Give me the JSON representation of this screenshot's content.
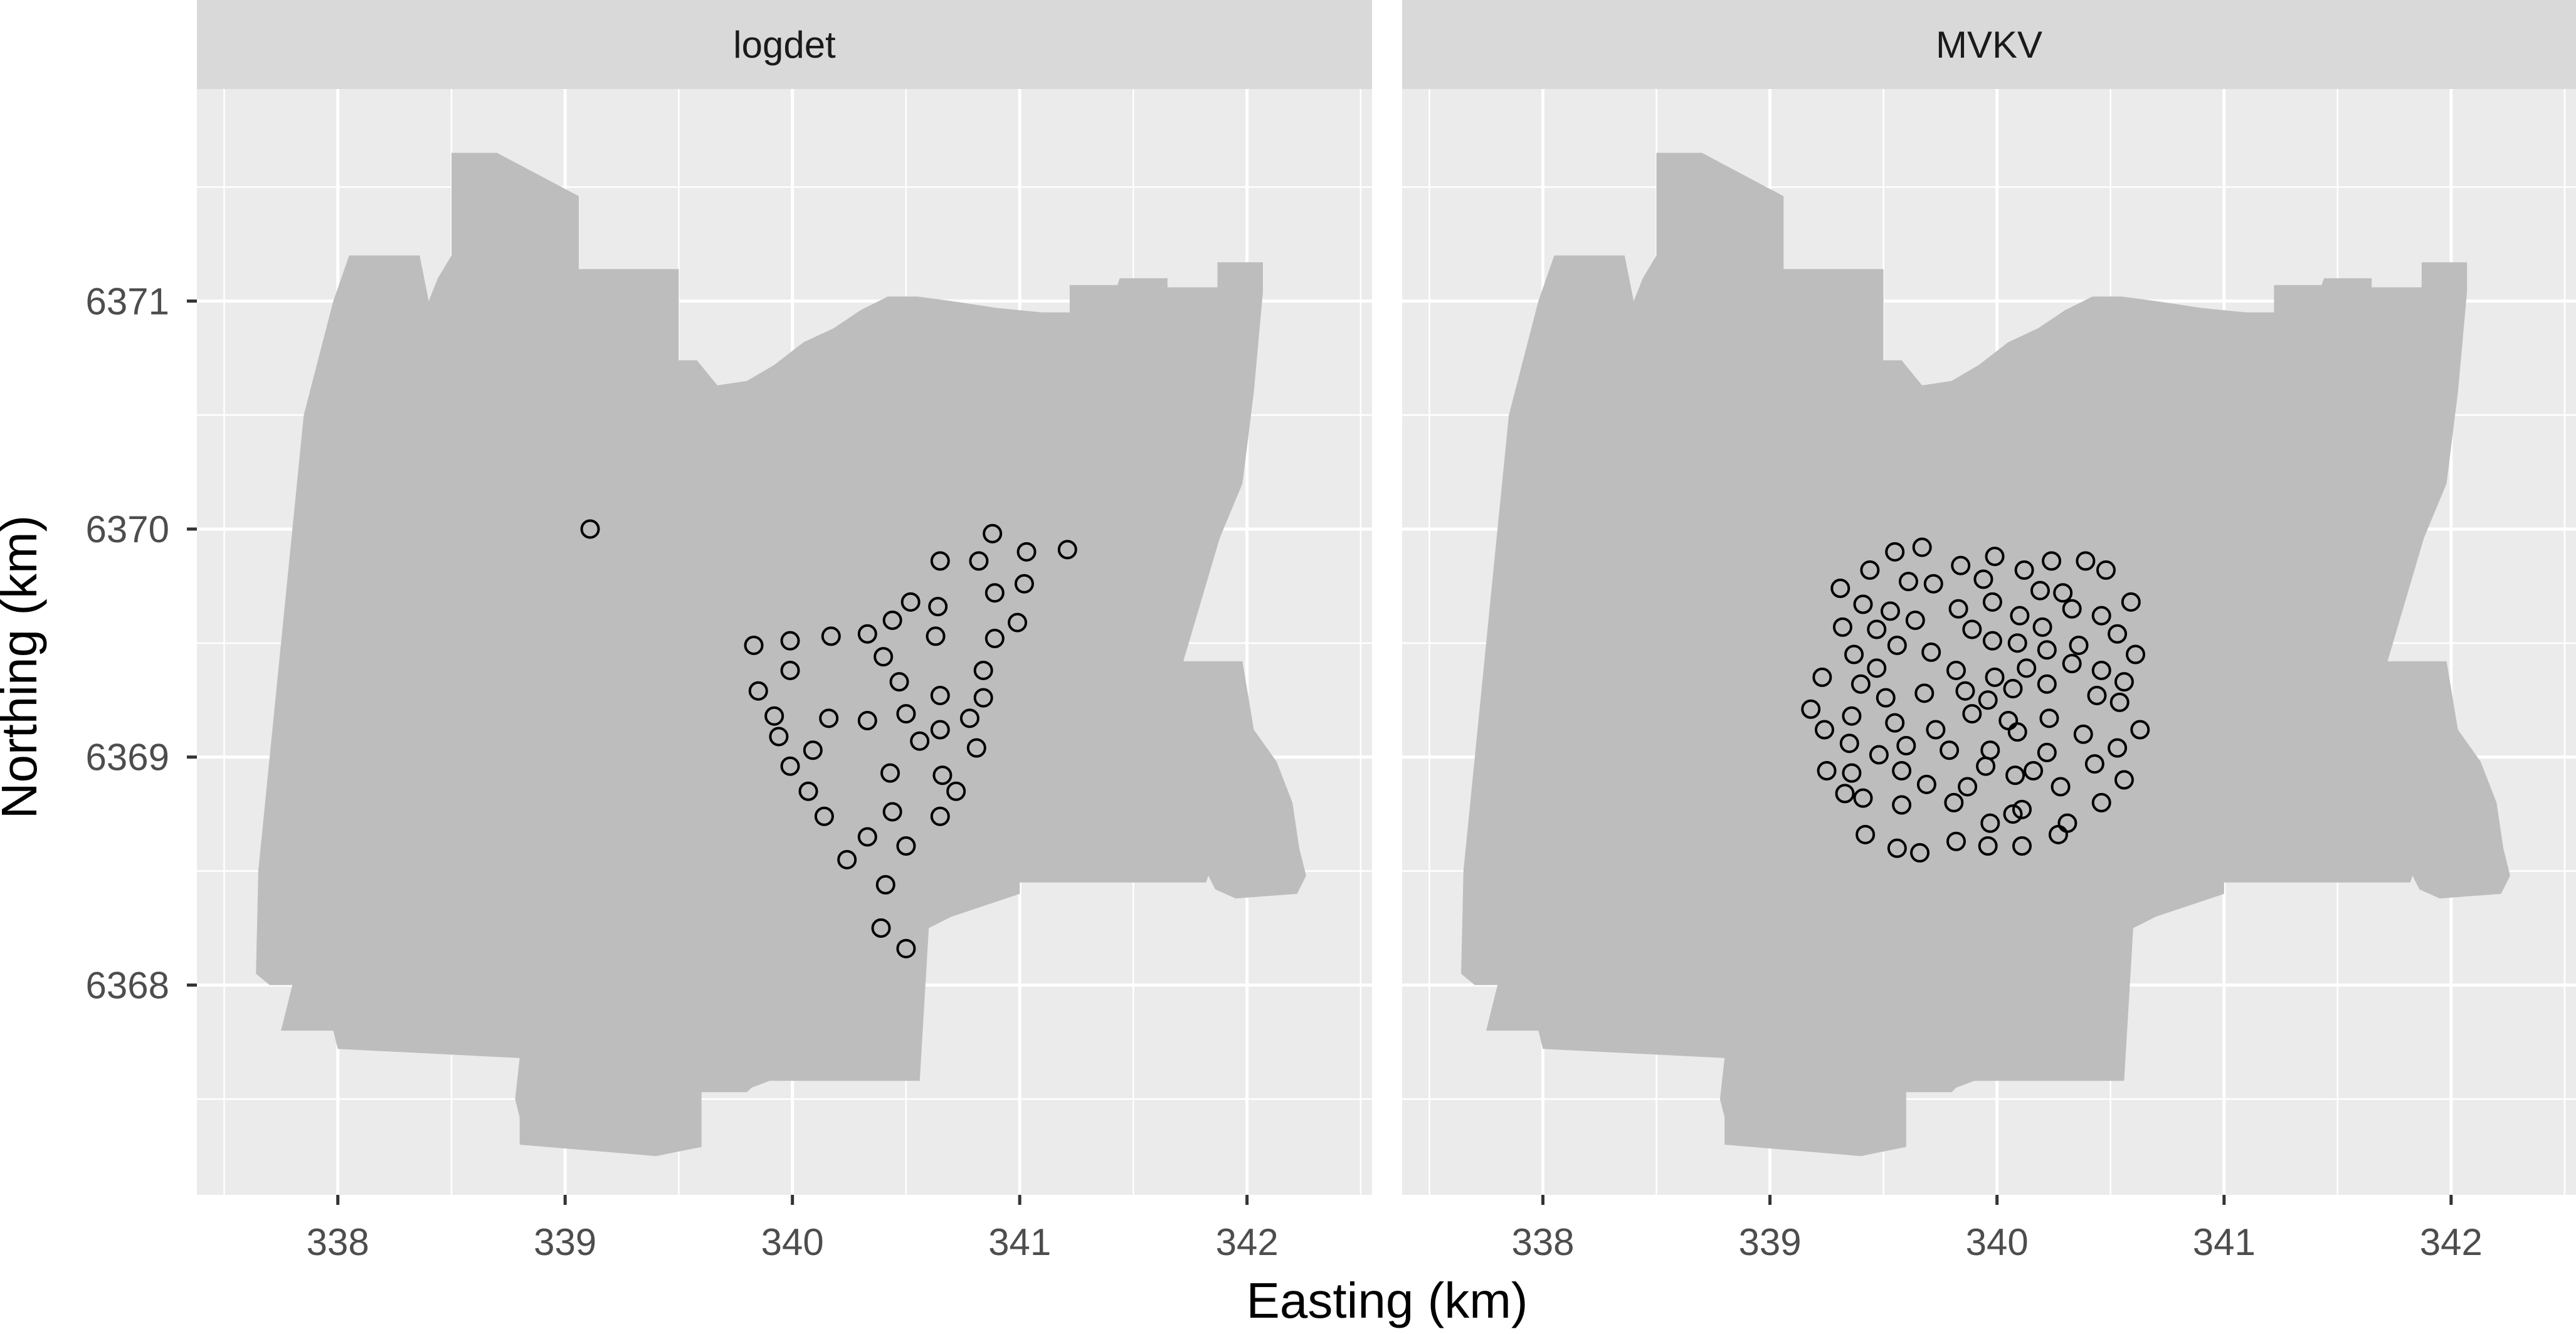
{
  "chart_data": {
    "type": "scatter",
    "xlabel": "Easting (km)",
    "ylabel": "Northing (km)",
    "xlim": [
      337.38,
      342.55
    ],
    "ylim": [
      6367.08,
      6371.93
    ],
    "x_ticks": [
      338,
      339,
      340,
      341,
      342
    ],
    "y_ticks": [
      6368,
      6369,
      6370,
      6371
    ],
    "x_tick_labels": [
      "338",
      "339",
      "340",
      "341",
      "342"
    ],
    "y_tick_labels": [
      "6368",
      "6369",
      "6370",
      "6371"
    ],
    "grid": true,
    "region_fill": "#bdbdbd",
    "panel_background": "#ebebeb",
    "strip_background": "#d9d9d9",
    "point_style": "open-circle",
    "study_area_outline": [
      [
        339.06,
        6371.46
      ],
      [
        339.06,
        6371.14
      ],
      [
        339.5,
        6371.14
      ],
      [
        339.5,
        6370.74
      ],
      [
        339.58,
        6370.74
      ],
      [
        339.67,
        6370.63
      ],
      [
        339.8,
        6370.65
      ],
      [
        339.92,
        6370.72
      ],
      [
        340.05,
        6370.82
      ],
      [
        340.18,
        6370.88
      ],
      [
        340.3,
        6370.96
      ],
      [
        340.42,
        6371.02
      ],
      [
        340.55,
        6371.02
      ],
      [
        340.7,
        6371.0
      ],
      [
        340.9,
        6370.97
      ],
      [
        341.1,
        6370.95
      ],
      [
        341.22,
        6370.95
      ],
      [
        341.22,
        6371.07
      ],
      [
        341.43,
        6371.07
      ],
      [
        341.44,
        6371.1
      ],
      [
        341.65,
        6371.1
      ],
      [
        341.65,
        6371.06
      ],
      [
        341.87,
        6371.06
      ],
      [
        341.87,
        6371.17
      ],
      [
        342.07,
        6371.17
      ],
      [
        342.07,
        6371.04
      ],
      [
        342.03,
        6370.6
      ],
      [
        341.98,
        6370.2
      ],
      [
        341.88,
        6369.96
      ],
      [
        341.72,
        6369.42
      ],
      [
        341.98,
        6369.42
      ],
      [
        342.03,
        6369.12
      ],
      [
        342.13,
        6368.98
      ],
      [
        342.2,
        6368.8
      ],
      [
        342.23,
        6368.6
      ],
      [
        342.26,
        6368.48
      ],
      [
        342.22,
        6368.4
      ],
      [
        341.95,
        6368.38
      ],
      [
        341.86,
        6368.42
      ],
      [
        341.83,
        6368.48
      ],
      [
        341.82,
        6368.45
      ],
      [
        341.0,
        6368.45
      ],
      [
        341.0,
        6368.4
      ],
      [
        340.7,
        6368.3
      ],
      [
        340.6,
        6368.25
      ],
      [
        340.56,
        6367.58
      ],
      [
        339.9,
        6367.58
      ],
      [
        339.82,
        6367.55
      ],
      [
        339.8,
        6367.53
      ],
      [
        339.6,
        6367.53
      ],
      [
        339.6,
        6367.29
      ],
      [
        339.5,
        6367.27
      ],
      [
        339.4,
        6367.25
      ],
      [
        338.8,
        6367.3
      ],
      [
        338.8,
        6367.42
      ],
      [
        338.78,
        6367.5
      ],
      [
        338.8,
        6367.68
      ],
      [
        338.0,
        6367.72
      ],
      [
        337.98,
        6367.8
      ],
      [
        337.75,
        6367.8
      ],
      [
        337.8,
        6368.0
      ],
      [
        337.7,
        6368.0
      ],
      [
        337.64,
        6368.05
      ],
      [
        337.65,
        6368.5
      ],
      [
        337.85,
        6370.5
      ],
      [
        337.98,
        6371.0
      ],
      [
        338.05,
        6371.2
      ],
      [
        338.36,
        6371.2
      ],
      [
        338.4,
        6371.0
      ],
      [
        338.44,
        6371.1
      ],
      [
        338.5,
        6371.2
      ],
      [
        338.5,
        6371.65
      ],
      [
        338.7,
        6371.65
      ]
    ],
    "facets": [
      {
        "title": "logdet",
        "points": [
          [
            339.11,
            6370.0
          ],
          [
            340.88,
            6369.98
          ],
          [
            341.03,
            6369.9
          ],
          [
            341.21,
            6369.91
          ],
          [
            340.65,
            6369.86
          ],
          [
            340.82,
            6369.86
          ],
          [
            341.02,
            6369.76
          ],
          [
            340.52,
            6369.68
          ],
          [
            340.64,
            6369.66
          ],
          [
            340.89,
            6369.72
          ],
          [
            340.44,
            6369.6
          ],
          [
            340.99,
            6369.59
          ],
          [
            340.17,
            6369.53
          ],
          [
            340.33,
            6369.54
          ],
          [
            340.63,
            6369.53
          ],
          [
            339.83,
            6369.49
          ],
          [
            339.99,
            6369.51
          ],
          [
            340.89,
            6369.52
          ],
          [
            340.4,
            6369.44
          ],
          [
            339.99,
            6369.38
          ],
          [
            340.84,
            6369.38
          ],
          [
            340.47,
            6369.33
          ],
          [
            339.85,
            6369.29
          ],
          [
            340.65,
            6369.27
          ],
          [
            340.84,
            6369.26
          ],
          [
            340.5,
            6369.19
          ],
          [
            339.92,
            6369.18
          ],
          [
            340.16,
            6369.17
          ],
          [
            340.33,
            6369.16
          ],
          [
            340.78,
            6369.17
          ],
          [
            340.65,
            6369.12
          ],
          [
            339.94,
            6369.09
          ],
          [
            340.56,
            6369.07
          ],
          [
            340.81,
            6369.04
          ],
          [
            340.09,
            6369.03
          ],
          [
            339.99,
            6368.96
          ],
          [
            340.43,
            6368.93
          ],
          [
            340.66,
            6368.92
          ],
          [
            340.07,
            6368.85
          ],
          [
            340.72,
            6368.85
          ],
          [
            340.14,
            6368.74
          ],
          [
            340.44,
            6368.76
          ],
          [
            340.65,
            6368.74
          ],
          [
            340.33,
            6368.65
          ],
          [
            340.5,
            6368.61
          ],
          [
            340.24,
            6368.55
          ],
          [
            340.41,
            6368.44
          ],
          [
            340.39,
            6368.25
          ],
          [
            340.5,
            6368.16
          ]
        ]
      },
      {
        "title": "MVKV",
        "points": [
          [
            339.67,
            6369.92
          ],
          [
            339.55,
            6369.9
          ],
          [
            339.99,
            6369.88
          ],
          [
            340.24,
            6369.86
          ],
          [
            340.39,
            6369.86
          ],
          [
            339.44,
            6369.82
          ],
          [
            339.84,
            6369.84
          ],
          [
            340.12,
            6369.82
          ],
          [
            340.48,
            6369.82
          ],
          [
            339.31,
            6369.74
          ],
          [
            339.61,
            6369.77
          ],
          [
            339.72,
            6369.76
          ],
          [
            339.94,
            6369.78
          ],
          [
            340.19,
            6369.73
          ],
          [
            340.29,
            6369.72
          ],
          [
            339.41,
            6369.67
          ],
          [
            339.53,
            6369.64
          ],
          [
            339.83,
            6369.65
          ],
          [
            339.98,
            6369.68
          ],
          [
            340.1,
            6369.62
          ],
          [
            340.33,
            6369.65
          ],
          [
            340.59,
            6369.68
          ],
          [
            339.47,
            6369.56
          ],
          [
            339.32,
            6369.57
          ],
          [
            339.64,
            6369.6
          ],
          [
            339.89,
            6369.56
          ],
          [
            340.2,
            6369.57
          ],
          [
            340.46,
            6369.62
          ],
          [
            340.53,
            6369.54
          ],
          [
            339.37,
            6369.45
          ],
          [
            339.56,
            6369.49
          ],
          [
            339.71,
            6369.46
          ],
          [
            339.98,
            6369.51
          ],
          [
            340.09,
            6369.5
          ],
          [
            340.22,
            6369.47
          ],
          [
            340.36,
            6369.49
          ],
          [
            340.61,
            6369.45
          ],
          [
            339.47,
            6369.39
          ],
          [
            339.82,
            6369.38
          ],
          [
            339.99,
            6369.35
          ],
          [
            340.13,
            6369.39
          ],
          [
            340.33,
            6369.41
          ],
          [
            340.46,
            6369.38
          ],
          [
            339.23,
            6369.35
          ],
          [
            339.4,
            6369.32
          ],
          [
            339.86,
            6369.29
          ],
          [
            340.07,
            6369.3
          ],
          [
            340.22,
            6369.32
          ],
          [
            340.56,
            6369.33
          ],
          [
            339.51,
            6369.26
          ],
          [
            339.68,
            6369.28
          ],
          [
            339.96,
            6369.25
          ],
          [
            340.44,
            6369.27
          ],
          [
            340.54,
            6369.24
          ],
          [
            339.18,
            6369.21
          ],
          [
            339.36,
            6369.18
          ],
          [
            339.55,
            6369.15
          ],
          [
            339.89,
            6369.19
          ],
          [
            340.05,
            6369.16
          ],
          [
            340.23,
            6369.17
          ],
          [
            339.24,
            6369.12
          ],
          [
            339.73,
            6369.12
          ],
          [
            340.09,
            6369.11
          ],
          [
            340.38,
            6369.1
          ],
          [
            340.63,
            6369.12
          ],
          [
            339.35,
            6369.06
          ],
          [
            339.6,
            6369.05
          ],
          [
            339.79,
            6369.03
          ],
          [
            339.97,
            6369.03
          ],
          [
            340.22,
            6369.02
          ],
          [
            340.53,
            6369.04
          ],
          [
            339.48,
            6369.01
          ],
          [
            340.43,
            6368.97
          ],
          [
            339.25,
            6368.94
          ],
          [
            339.36,
            6368.93
          ],
          [
            339.58,
            6368.94
          ],
          [
            339.95,
            6368.96
          ],
          [
            340.08,
            6368.92
          ],
          [
            340.16,
            6368.94
          ],
          [
            339.69,
            6368.88
          ],
          [
            339.87,
            6368.87
          ],
          [
            340.28,
            6368.87
          ],
          [
            340.56,
            6368.9
          ],
          [
            339.41,
            6368.82
          ],
          [
            339.33,
            6368.84
          ],
          [
            339.58,
            6368.79
          ],
          [
            339.81,
            6368.8
          ],
          [
            340.07,
            6368.75
          ],
          [
            340.11,
            6368.77
          ],
          [
            340.46,
            6368.8
          ],
          [
            339.97,
            6368.71
          ],
          [
            339.42,
            6368.66
          ],
          [
            340.31,
            6368.71
          ],
          [
            339.56,
            6368.6
          ],
          [
            339.66,
            6368.58
          ],
          [
            339.82,
            6368.63
          ],
          [
            339.96,
            6368.61
          ],
          [
            340.11,
            6368.61
          ],
          [
            340.27,
            6368.66
          ]
        ]
      }
    ]
  }
}
